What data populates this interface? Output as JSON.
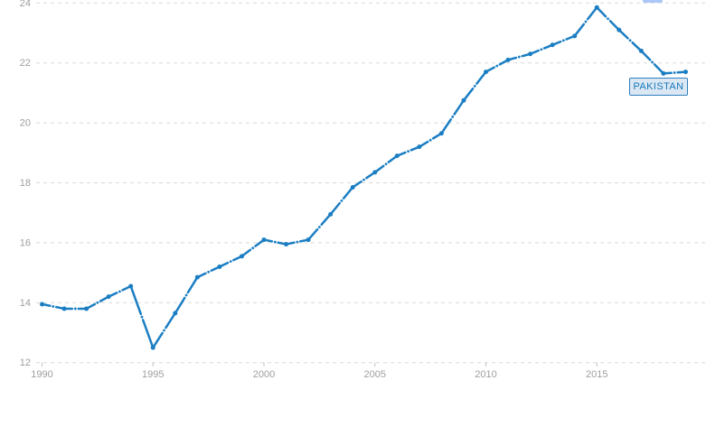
{
  "series_label": "PAKISTAN",
  "colors": {
    "line": "#1b7ec3",
    "grid": "#d9d9d9",
    "tick": "#c0c0c0",
    "axis_text": "#9e9e9e",
    "label_bg": "#dbe8f3",
    "label_border": "#2e7fc1",
    "label_text": "#1878be",
    "top_sliver": "#abc6f8",
    "background": "#ffffff"
  },
  "chart_data": {
    "type": "line",
    "title": "",
    "xlabel": "",
    "ylabel": "",
    "x": [
      1990,
      1991,
      1992,
      1993,
      1994,
      1995,
      1996,
      1997,
      1998,
      1999,
      2000,
      2001,
      2002,
      2003,
      2004,
      2005,
      2006,
      2007,
      2008,
      2009,
      2010,
      2011,
      2012,
      2013,
      2014,
      2015,
      2016,
      2017,
      2018,
      2019
    ],
    "series": [
      {
        "name": "PAKISTAN",
        "values": [
          13.95,
          13.8,
          13.8,
          14.2,
          14.55,
          12.5,
          13.65,
          14.85,
          15.2,
          15.55,
          16.1,
          15.95,
          16.1,
          16.95,
          17.85,
          18.35,
          18.9,
          19.2,
          19.65,
          20.75,
          21.7,
          22.1,
          22.3,
          22.6,
          22.9,
          23.85,
          23.1,
          22.4,
          21.65,
          21.7
        ]
      }
    ],
    "ylim": [
      12,
      24
    ],
    "xlim": [
      1990,
      2019
    ],
    "yticks": [
      12,
      14,
      16,
      18,
      20,
      22,
      24
    ],
    "xticks": [
      1990,
      1995,
      2000,
      2005,
      2010,
      2015
    ],
    "grid": "horizontal-dashed",
    "legend_position": "end-of-line-label",
    "line_style": "dash-dot-with-point-markers"
  }
}
